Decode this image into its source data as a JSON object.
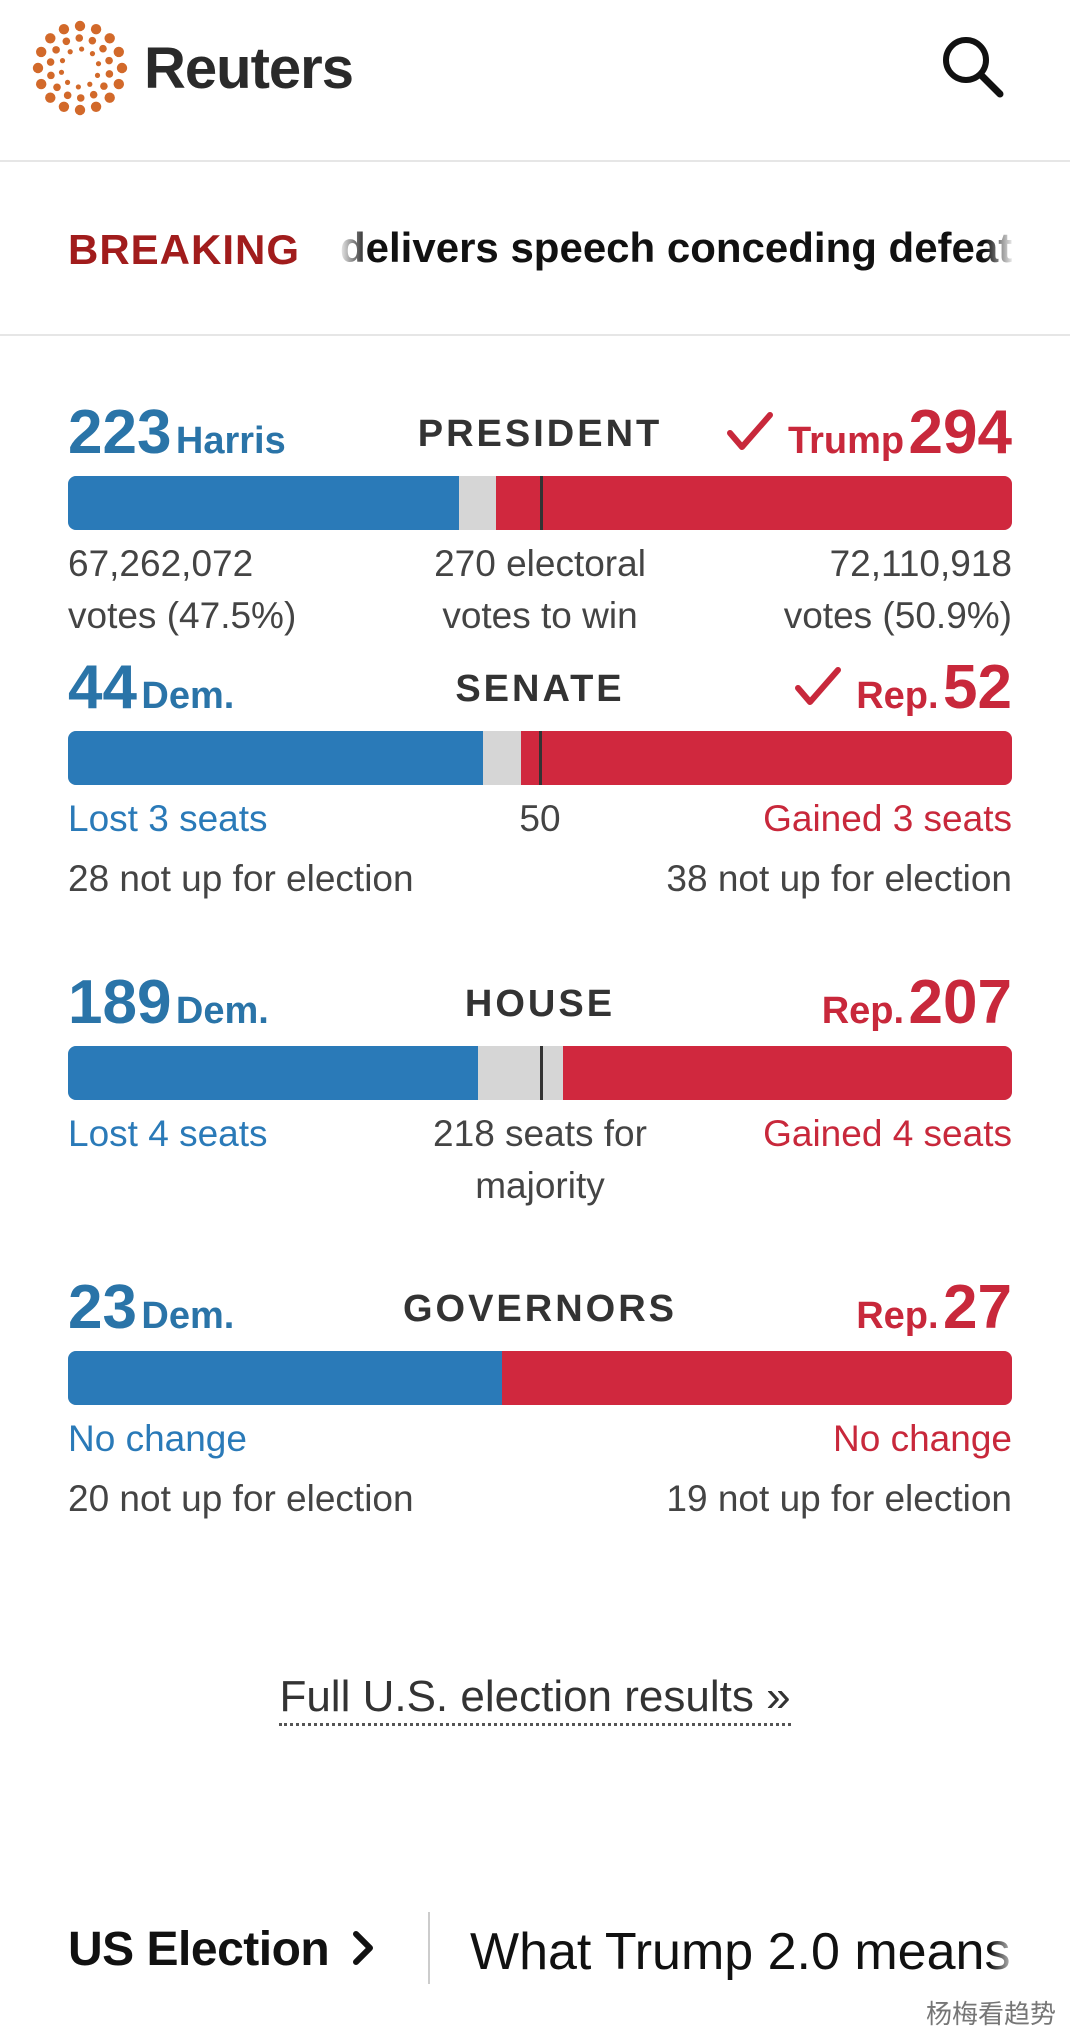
{
  "header": {
    "brand": "Reuters",
    "search_icon": "search-icon",
    "brand_color": "#d2692a"
  },
  "breaking": {
    "tag": "BREAKING",
    "headline": "delivers speech conceding defeat"
  },
  "colors": {
    "dem": "#2a7ab8",
    "rep": "#c8283b",
    "undecided": "#d6d6d6"
  },
  "president": {
    "title": "PRESIDENT",
    "dem_count": "223",
    "dem_name": "Harris",
    "rep_count": "294",
    "rep_name": "Trump",
    "rep_winner": true,
    "dem_votes": "67,262,072",
    "dem_votes_pct": "votes (47.5%)",
    "rep_votes": "72,110,918",
    "rep_votes_pct": "votes (50.9%)",
    "threshold_line1": "270 electoral",
    "threshold_line2": "votes to win",
    "total": 538,
    "dem_value": 223,
    "rep_value": 294,
    "threshold_value": 270
  },
  "senate": {
    "title": "SENATE",
    "dem_count": "44",
    "dem_name": "Dem.",
    "rep_count": "52",
    "rep_name": "Rep.",
    "rep_winner": true,
    "dem_change": "Lost 3 seats",
    "rep_change": "Gained 3 seats",
    "threshold": "50",
    "dem_not_up": "28 not up for election",
    "rep_not_up": "38 not up for election",
    "total": 100,
    "dem_value": 44,
    "rep_value": 52,
    "threshold_value": 50
  },
  "house": {
    "title": "HOUSE",
    "dem_count": "189",
    "dem_name": "Dem.",
    "rep_count": "207",
    "rep_name": "Rep.",
    "rep_winner": false,
    "dem_change": "Lost 4 seats",
    "rep_change": "Gained 4 seats",
    "threshold_line1": "218 seats for",
    "threshold_line2": "majority",
    "total": 435,
    "dem_value": 189,
    "rep_value": 207,
    "threshold_value": 218
  },
  "governors": {
    "title": "GOVERNORS",
    "dem_count": "23",
    "dem_name": "Dem.",
    "rep_count": "27",
    "rep_name": "Rep.",
    "rep_winner": false,
    "dem_change": "No change",
    "rep_change": "No change",
    "dem_not_up": "20 not up for election",
    "rep_not_up": "19 not up for election",
    "total": 50,
    "dem_value": 23,
    "rep_value": 27
  },
  "results_link": "Full U.S. election results »",
  "bottom_nav": {
    "section": "US Election",
    "story": "What Trump 2.0 means"
  },
  "watermark": "杨梅看趋势"
}
